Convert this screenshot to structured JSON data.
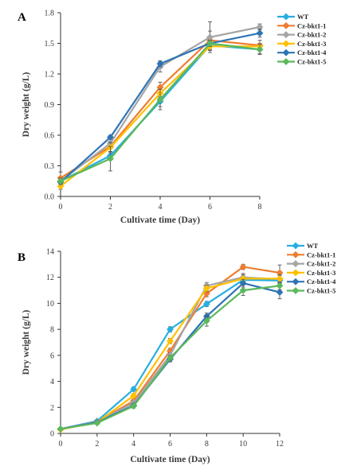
{
  "chart_data": [
    {
      "type": "line",
      "panel_label": "A",
      "xlabel": "Cultivate time (Day)",
      "ylabel": "Dry weight (g/L)",
      "x": [
        0,
        2,
        4,
        6,
        8
      ],
      "xlim": [
        0,
        8
      ],
      "ylim": [
        0,
        1.8
      ],
      "yticks": [
        "0.0",
        "0.3",
        "0.6",
        "0.9",
        "1.2",
        "1.5",
        "1.8"
      ],
      "xticks": [
        "0",
        "2",
        "4",
        "6",
        "8"
      ],
      "grid": false,
      "legend_position": "top-right",
      "series": [
        {
          "name": "WT",
          "color": "#27aee0",
          "values": [
            0.15,
            0.4,
            0.93,
            1.48,
            1.44
          ],
          "errors": [
            0.03,
            0.04,
            0.05,
            0.05,
            0.04
          ]
        },
        {
          "name": "Cz-bkt1-1",
          "color": "#ee7d31",
          "values": [
            0.18,
            0.49,
            1.07,
            1.53,
            1.48
          ],
          "errors": [
            0.06,
            0.05,
            0.05,
            0.09,
            0.05
          ]
        },
        {
          "name": "Cz-bkt1-2",
          "color": "#a5a5a5",
          "values": [
            0.15,
            0.52,
            1.27,
            1.56,
            1.66
          ],
          "errors": [
            0.03,
            0.05,
            0.05,
            0.15,
            0.03
          ]
        },
        {
          "name": "Cz-bkt1-3",
          "color": "#ffc000",
          "values": [
            0.1,
            0.48,
            1.01,
            1.47,
            1.47
          ],
          "errors": [
            0.03,
            0.05,
            0.04,
            0.03,
            0.03
          ]
        },
        {
          "name": "Cz-bkt1-4",
          "color": "#2e74b5",
          "values": [
            0.14,
            0.58,
            1.3,
            1.5,
            1.6
          ],
          "errors": [
            0.02,
            0.02,
            0.03,
            0.03,
            0.04
          ]
        },
        {
          "name": "Cz-bkt1-5",
          "color": "#5bb85c",
          "values": [
            0.15,
            0.37,
            0.95,
            1.5,
            1.44
          ],
          "errors": [
            0.03,
            0.12,
            0.1,
            0.03,
            0.05
          ]
        }
      ]
    },
    {
      "type": "line",
      "panel_label": "B",
      "xlabel": "Cultivate time (Day)",
      "ylabel": "Dry weight (g/L)",
      "x": [
        0,
        2,
        4,
        6,
        8,
        10,
        12
      ],
      "xlim": [
        0,
        12
      ],
      "ylim": [
        0,
        14
      ],
      "yticks": [
        "0",
        "2",
        "4",
        "6",
        "8",
        "10",
        "12",
        "14"
      ],
      "xticks": [
        "0",
        "2",
        "4",
        "6",
        "8",
        "10",
        "12"
      ],
      "grid": false,
      "legend_position": "top-right",
      "series": [
        {
          "name": "WT",
          "color": "#27aee0",
          "values": [
            0.35,
            0.95,
            3.4,
            8.0,
            9.95,
            11.8,
            11.75
          ],
          "errors": [
            0.1,
            0.1,
            0.15,
            0.2,
            0.2,
            0.25,
            0.25
          ]
        },
        {
          "name": "Cz-bkt1-1",
          "color": "#ee7d31",
          "values": [
            0.3,
            0.9,
            2.5,
            6.35,
            10.75,
            12.8,
            12.35
          ],
          "errors": [
            0.1,
            0.1,
            0.15,
            0.2,
            0.25,
            0.2,
            0.6
          ]
        },
        {
          "name": "Cz-bkt1-2",
          "color": "#a5a5a5",
          "values": [
            0.35,
            0.9,
            2.35,
            6.0,
            11.35,
            12.0,
            11.85
          ],
          "errors": [
            0.1,
            0.1,
            0.15,
            0.2,
            0.25,
            0.3,
            0.3
          ]
        },
        {
          "name": "Cz-bkt1-3",
          "color": "#ffc000",
          "values": [
            0.3,
            0.85,
            2.9,
            7.1,
            11.15,
            11.9,
            11.9
          ],
          "errors": [
            0.1,
            0.1,
            0.15,
            0.2,
            0.25,
            0.3,
            0.3
          ]
        },
        {
          "name": "Cz-bkt1-4",
          "color": "#2e74b5",
          "values": [
            0.35,
            0.85,
            2.15,
            5.7,
            9.0,
            11.55,
            10.85
          ],
          "errors": [
            0.1,
            0.1,
            0.15,
            0.2,
            0.25,
            0.3,
            0.5
          ]
        },
        {
          "name": "Cz-bkt1-5",
          "color": "#5bb85c",
          "values": [
            0.35,
            0.8,
            2.1,
            5.8,
            8.65,
            11.0,
            11.35
          ],
          "errors": [
            0.1,
            0.1,
            0.15,
            0.2,
            0.4,
            0.4,
            0.3
          ]
        }
      ]
    }
  ]
}
